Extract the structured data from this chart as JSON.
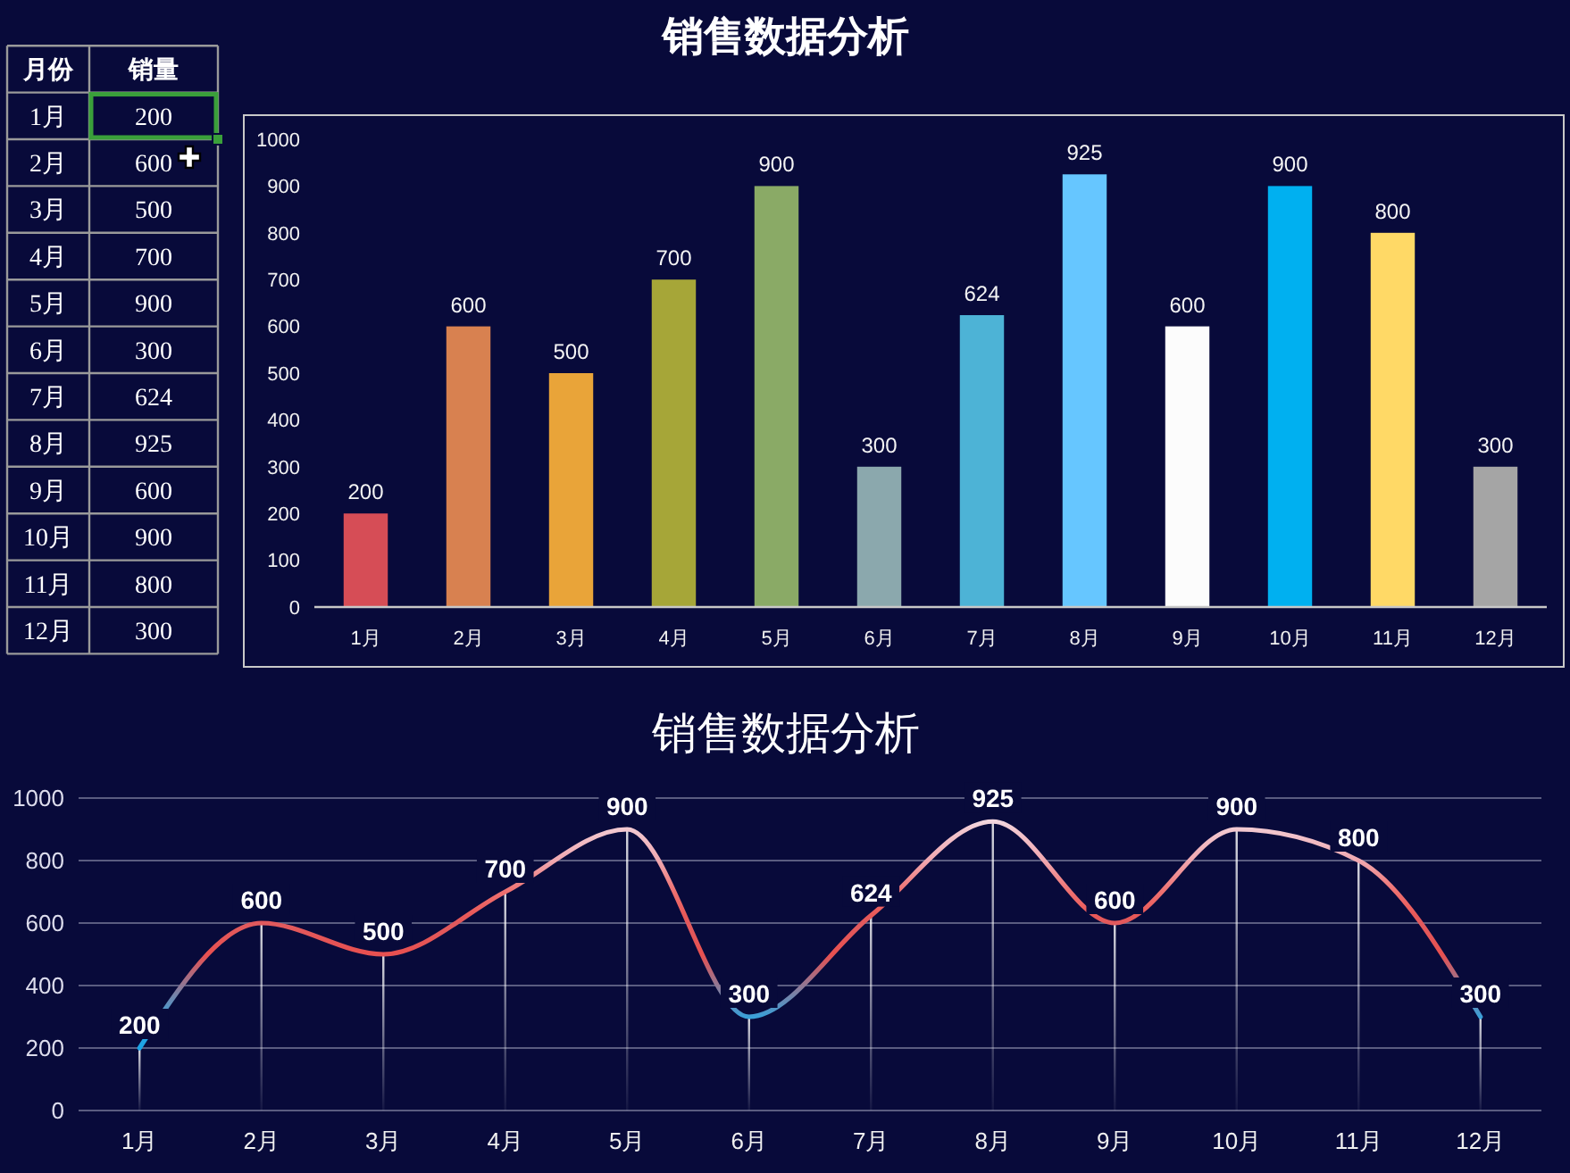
{
  "chart_data": [
    {
      "type": "heatmap",
      "ylabel": "月份",
      "categories": [
        "销量"
      ],
      "y_categories": [
        "1月",
        "2月",
        "3月",
        "4月",
        "5月",
        "6月",
        "7月",
        "8月",
        "9月",
        "10月",
        "11月",
        "12月"
      ],
      "cells": [
        [
          200
        ],
        [
          600
        ],
        [
          500
        ],
        [
          700
        ],
        [
          900
        ],
        [
          300
        ],
        [
          624
        ],
        [
          925
        ],
        [
          600
        ],
        [
          900
        ],
        [
          800
        ],
        [
          300
        ]
      ],
      "data_labels": true
    },
    {
      "type": "bar",
      "title": "销售数据分析",
      "categories": [
        "1月",
        "2月",
        "3月",
        "4月",
        "5月",
        "6月",
        "7月",
        "8月",
        "9月",
        "10月",
        "11月",
        "12月"
      ],
      "values": [
        200,
        600,
        500,
        700,
        900,
        300,
        624,
        925,
        600,
        900,
        800,
        300
      ],
      "colors": [
        "#d64d56",
        "#d88150",
        "#e9a439",
        "#a6a638",
        "#8aaa66",
        "#8ba8ad",
        "#4db3d6",
        "#66c6ff",
        "#fcfcfc",
        "#00b0f0",
        "#ffd966",
        "#a5a5a5"
      ],
      "ylim": [
        0,
        1000
      ],
      "yticks": [
        0,
        100,
        200,
        300,
        400,
        500,
        600,
        700,
        800,
        900,
        1000
      ],
      "data_labels": true
    },
    {
      "type": "line",
      "title": "销售数据分析",
      "categories": [
        "1月",
        "2月",
        "3月",
        "4月",
        "5月",
        "6月",
        "7月",
        "8月",
        "9月",
        "10月",
        "11月",
        "12月"
      ],
      "series": [
        {
          "type": "bar",
          "color": "#ffffff",
          "values": [
            200,
            600,
            500,
            700,
            900,
            300,
            624,
            925,
            600,
            900,
            800,
            300
          ]
        },
        {
          "type": "line",
          "values": [
            200,
            600,
            500,
            700,
            900,
            300,
            624,
            925,
            600,
            900,
            800,
            300
          ],
          "value_labels": [
            "200",
            "600",
            "500",
            "700",
            "900",
            "300",
            "624",
            "925",
            "600",
            "900",
            "800",
            "300"
          ],
          "colors": [
            "#1aa3e6",
            "#e0585c",
            "#e85050",
            "#ee7070",
            "#f2c8d0",
            "#3a9fd8",
            "#e85858",
            "#f2d6de",
            "#e05a5e",
            "#f2c8d0",
            "#f0a8b0",
            "#3aa0d8"
          ]
        }
      ],
      "ylim": [
        0,
        1000
      ],
      "yticks": [
        0,
        200,
        400,
        600,
        800,
        1000
      ],
      "grid": "y"
    }
  ]
}
